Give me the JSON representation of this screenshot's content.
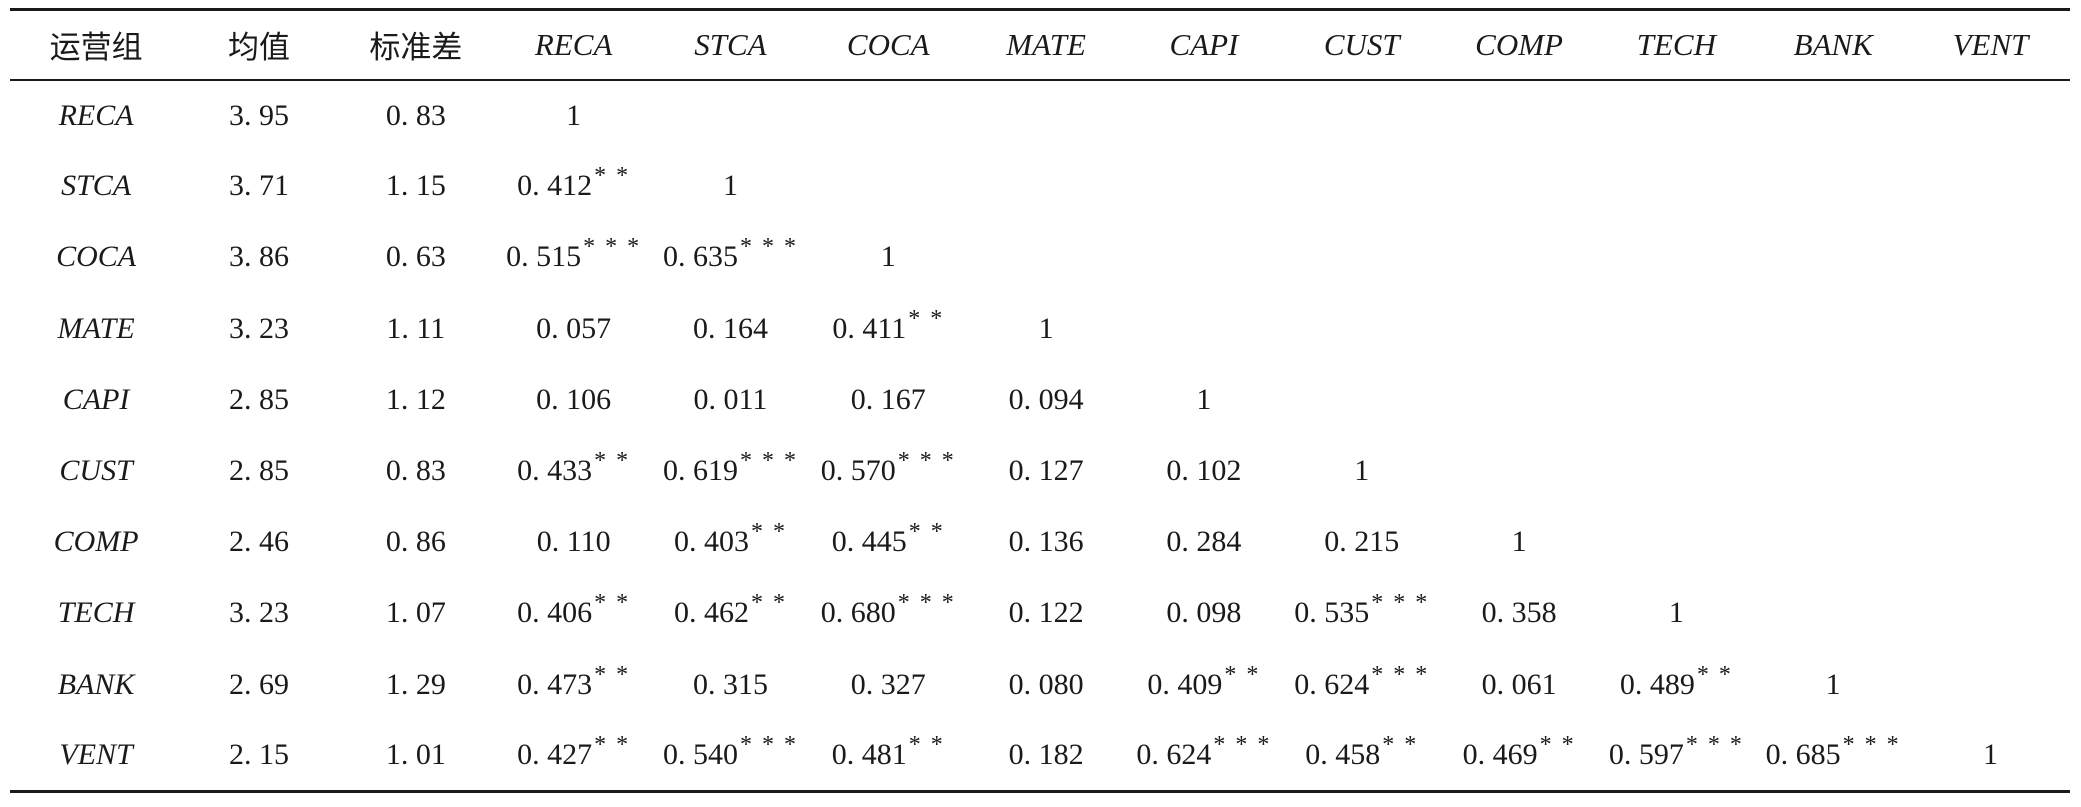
{
  "table": {
    "headers": [
      "运营组",
      "均值",
      "标准差",
      "RECA",
      "STCA",
      "COCA",
      "MATE",
      "CAPI",
      "CUST",
      "COMP",
      "TECH",
      "BANK",
      "VENT"
    ],
    "rows": [
      {
        "name": "RECA",
        "mean": "3. 95",
        "sd": "0. 83",
        "corr": [
          {
            "v": "1",
            "s": ""
          }
        ]
      },
      {
        "name": "STCA",
        "mean": "3. 71",
        "sd": "1. 15",
        "corr": [
          {
            "v": "0. 412",
            "s": "* *"
          },
          {
            "v": "1",
            "s": ""
          }
        ]
      },
      {
        "name": "COCA",
        "mean": "3. 86",
        "sd": "0. 63",
        "corr": [
          {
            "v": "0. 515",
            "s": "* * *"
          },
          {
            "v": "0. 635",
            "s": "* * *"
          },
          {
            "v": "1",
            "s": ""
          }
        ]
      },
      {
        "name": "MATE",
        "mean": "3. 23",
        "sd": "1. 11",
        "corr": [
          {
            "v": "0. 057",
            "s": ""
          },
          {
            "v": "0. 164",
            "s": ""
          },
          {
            "v": "0. 411",
            "s": "* *"
          },
          {
            "v": "1",
            "s": ""
          }
        ]
      },
      {
        "name": "CAPI",
        "mean": "2. 85",
        "sd": "1. 12",
        "corr": [
          {
            "v": "0. 106",
            "s": ""
          },
          {
            "v": "0. 011",
            "s": ""
          },
          {
            "v": "0. 167",
            "s": ""
          },
          {
            "v": "0. 094",
            "s": ""
          },
          {
            "v": "1",
            "s": ""
          }
        ]
      },
      {
        "name": "CUST",
        "mean": "2. 85",
        "sd": "0. 83",
        "corr": [
          {
            "v": "0. 433",
            "s": "* *"
          },
          {
            "v": "0. 619",
            "s": "* * *"
          },
          {
            "v": "0. 570",
            "s": "* * *"
          },
          {
            "v": "0. 127",
            "s": ""
          },
          {
            "v": "0. 102",
            "s": ""
          },
          {
            "v": "1",
            "s": ""
          }
        ]
      },
      {
        "name": "COMP",
        "mean": "2. 46",
        "sd": "0. 86",
        "corr": [
          {
            "v": "0. 110",
            "s": ""
          },
          {
            "v": "0. 403",
            "s": "* *"
          },
          {
            "v": "0. 445",
            "s": "* *"
          },
          {
            "v": "0. 136",
            "s": ""
          },
          {
            "v": "0. 284",
            "s": ""
          },
          {
            "v": "0. 215",
            "s": ""
          },
          {
            "v": "1",
            "s": ""
          }
        ]
      },
      {
        "name": "TECH",
        "mean": "3. 23",
        "sd": "1. 07",
        "corr": [
          {
            "v": "0. 406",
            "s": "* *"
          },
          {
            "v": "0. 462",
            "s": "* *"
          },
          {
            "v": "0. 680",
            "s": "* * *"
          },
          {
            "v": "0. 122",
            "s": ""
          },
          {
            "v": "0. 098",
            "s": ""
          },
          {
            "v": "0. 535",
            "s": "* * *"
          },
          {
            "v": "0. 358",
            "s": ""
          },
          {
            "v": "1",
            "s": ""
          }
        ]
      },
      {
        "name": "BANK",
        "mean": "2. 69",
        "sd": "1. 29",
        "corr": [
          {
            "v": "0. 473",
            "s": "* *"
          },
          {
            "v": "0. 315",
            "s": ""
          },
          {
            "v": "0. 327",
            "s": ""
          },
          {
            "v": "0. 080",
            "s": ""
          },
          {
            "v": "0. 409",
            "s": "* *"
          },
          {
            "v": "0. 624",
            "s": "* * *"
          },
          {
            "v": "0. 061",
            "s": ""
          },
          {
            "v": "0. 489",
            "s": "* *"
          },
          {
            "v": "1",
            "s": ""
          }
        ]
      },
      {
        "name": "VENT",
        "mean": "2. 15",
        "sd": "1. 01",
        "corr": [
          {
            "v": "0. 427",
            "s": "* *"
          },
          {
            "v": "0. 540",
            "s": "* * *"
          },
          {
            "v": "0. 481",
            "s": "* *"
          },
          {
            "v": "0. 182",
            "s": ""
          },
          {
            "v": "0. 624",
            "s": "* * *"
          },
          {
            "v": "0. 458",
            "s": "* *"
          },
          {
            "v": "0. 469",
            "s": "* *"
          },
          {
            "v": "0. 597",
            "s": "* * *"
          },
          {
            "v": "0. 685",
            "s": "* * *"
          },
          {
            "v": "1",
            "s": ""
          }
        ]
      }
    ]
  }
}
